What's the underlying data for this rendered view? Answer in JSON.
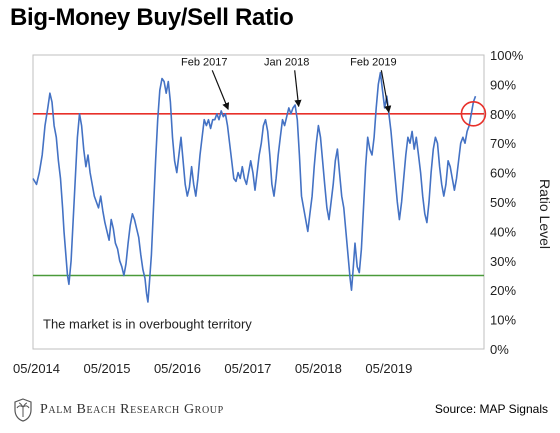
{
  "title": "Big-Money Buy/Sell Ratio",
  "brand": "Palm Beach Research Group",
  "source": "Source: MAP Signals",
  "chart_data": {
    "type": "line",
    "xlabel": "",
    "ylabel": "Ratio Level",
    "ylim": [
      0,
      100
    ],
    "yticks": [
      "0%",
      "10%",
      "20%",
      "30%",
      "40%",
      "50%",
      "60%",
      "70%",
      "80%",
      "90%",
      "100%"
    ],
    "xticks": [
      {
        "label": "05/2014",
        "t": 0
      },
      {
        "label": "05/2015",
        "t": 1
      },
      {
        "label": "05/2016",
        "t": 2
      },
      {
        "label": "05/2017",
        "t": 3
      },
      {
        "label": "05/2018",
        "t": 4
      },
      {
        "label": "05/2019",
        "t": 5
      }
    ],
    "xlim": [
      -0.05,
      6.35
    ],
    "reference_lines": [
      {
        "value": 80,
        "color": "#e8302a"
      },
      {
        "value": 25,
        "color": "#4a9a3a"
      }
    ],
    "annotations": [
      {
        "text": "Feb 2017",
        "t": 2.38,
        "y": 96.5,
        "arrow_to_t": 2.72,
        "arrow_to_y": 81.5
      },
      {
        "text": "Jan 2018",
        "t": 3.55,
        "y": 96.5,
        "arrow_to_t": 3.72,
        "arrow_to_y": 82.5
      },
      {
        "text": "Feb 2019",
        "t": 4.78,
        "y": 96.5,
        "arrow_to_t": 5.0,
        "arrow_to_y": 80.5
      }
    ],
    "note": "The market is in overbought territory",
    "highlight": {
      "t": 6.2,
      "y": 80
    },
    "series": [
      {
        "color": "#4472c4",
        "points": [
          [
            -0.05,
            58
          ],
          [
            0.0,
            56
          ],
          [
            0.04,
            60
          ],
          [
            0.08,
            66
          ],
          [
            0.12,
            76
          ],
          [
            0.16,
            82
          ],
          [
            0.19,
            87
          ],
          [
            0.22,
            84
          ],
          [
            0.25,
            76
          ],
          [
            0.28,
            72
          ],
          [
            0.31,
            64
          ],
          [
            0.34,
            58
          ],
          [
            0.37,
            48
          ],
          [
            0.39,
            40
          ],
          [
            0.42,
            31
          ],
          [
            0.44,
            25
          ],
          [
            0.46,
            22
          ],
          [
            0.49,
            30
          ],
          [
            0.52,
            44
          ],
          [
            0.55,
            58
          ],
          [
            0.58,
            72
          ],
          [
            0.61,
            80
          ],
          [
            0.64,
            76
          ],
          [
            0.67,
            68
          ],
          [
            0.7,
            62
          ],
          [
            0.73,
            66
          ],
          [
            0.76,
            60
          ],
          [
            0.79,
            56
          ],
          [
            0.82,
            52
          ],
          [
            0.85,
            50
          ],
          [
            0.88,
            48
          ],
          [
            0.91,
            52
          ],
          [
            0.94,
            47
          ],
          [
            0.97,
            43
          ],
          [
            1.0,
            40
          ],
          [
            1.03,
            37
          ],
          [
            1.06,
            44
          ],
          [
            1.09,
            41
          ],
          [
            1.12,
            36
          ],
          [
            1.15,
            34
          ],
          [
            1.18,
            30
          ],
          [
            1.21,
            28
          ],
          [
            1.24,
            25
          ],
          [
            1.27,
            29
          ],
          [
            1.3,
            36
          ],
          [
            1.33,
            42
          ],
          [
            1.36,
            46
          ],
          [
            1.39,
            44
          ],
          [
            1.42,
            41
          ],
          [
            1.45,
            38
          ],
          [
            1.48,
            32
          ],
          [
            1.51,
            27
          ],
          [
            1.54,
            24
          ],
          [
            1.56,
            19
          ],
          [
            1.58,
            16
          ],
          [
            1.6,
            22
          ],
          [
            1.63,
            32
          ],
          [
            1.66,
            48
          ],
          [
            1.69,
            64
          ],
          [
            1.72,
            78
          ],
          [
            1.75,
            88
          ],
          [
            1.78,
            92
          ],
          [
            1.81,
            91
          ],
          [
            1.84,
            87
          ],
          [
            1.87,
            91
          ],
          [
            1.9,
            84
          ],
          [
            1.93,
            72
          ],
          [
            1.96,
            64
          ],
          [
            1.99,
            60
          ],
          [
            2.02,
            66
          ],
          [
            2.05,
            72
          ],
          [
            2.08,
            64
          ],
          [
            2.11,
            56
          ],
          [
            2.14,
            52
          ],
          [
            2.17,
            55
          ],
          [
            2.2,
            62
          ],
          [
            2.23,
            56
          ],
          [
            2.26,
            52
          ],
          [
            2.29,
            58
          ],
          [
            2.32,
            66
          ],
          [
            2.35,
            72
          ],
          [
            2.38,
            78
          ],
          [
            2.41,
            76
          ],
          [
            2.44,
            78
          ],
          [
            2.47,
            75
          ],
          [
            2.5,
            78
          ],
          [
            2.53,
            78
          ],
          [
            2.56,
            80
          ],
          [
            2.59,
            78
          ],
          [
            2.62,
            81
          ],
          [
            2.65,
            79
          ],
          [
            2.68,
            80
          ],
          [
            2.71,
            76
          ],
          [
            2.74,
            70
          ],
          [
            2.77,
            64
          ],
          [
            2.8,
            58
          ],
          [
            2.83,
            57
          ],
          [
            2.86,
            60
          ],
          [
            2.89,
            58
          ],
          [
            2.92,
            62
          ],
          [
            2.95,
            58
          ],
          [
            2.98,
            56
          ],
          [
            3.01,
            60
          ],
          [
            3.04,
            64
          ],
          [
            3.07,
            60
          ],
          [
            3.1,
            54
          ],
          [
            3.13,
            60
          ],
          [
            3.16,
            66
          ],
          [
            3.19,
            70
          ],
          [
            3.22,
            76
          ],
          [
            3.25,
            78
          ],
          [
            3.28,
            74
          ],
          [
            3.31,
            66
          ],
          [
            3.34,
            56
          ],
          [
            3.37,
            52
          ],
          [
            3.4,
            58
          ],
          [
            3.43,
            66
          ],
          [
            3.46,
            72
          ],
          [
            3.49,
            78
          ],
          [
            3.52,
            76
          ],
          [
            3.55,
            79
          ],
          [
            3.58,
            82
          ],
          [
            3.61,
            80
          ],
          [
            3.64,
            82
          ],
          [
            3.67,
            83
          ],
          [
            3.7,
            78
          ],
          [
            3.73,
            66
          ],
          [
            3.76,
            52
          ],
          [
            3.79,
            48
          ],
          [
            3.82,
            44
          ],
          [
            3.85,
            40
          ],
          [
            3.88,
            46
          ],
          [
            3.91,
            52
          ],
          [
            3.94,
            62
          ],
          [
            3.97,
            70
          ],
          [
            4.0,
            76
          ],
          [
            4.03,
            72
          ],
          [
            4.06,
            64
          ],
          [
            4.09,
            56
          ],
          [
            4.12,
            48
          ],
          [
            4.15,
            44
          ],
          [
            4.18,
            50
          ],
          [
            4.21,
            56
          ],
          [
            4.24,
            64
          ],
          [
            4.27,
            68
          ],
          [
            4.3,
            60
          ],
          [
            4.33,
            52
          ],
          [
            4.36,
            48
          ],
          [
            4.39,
            40
          ],
          [
            4.42,
            32
          ],
          [
            4.45,
            24
          ],
          [
            4.47,
            20
          ],
          [
            4.49,
            26
          ],
          [
            4.52,
            36
          ],
          [
            4.55,
            28
          ],
          [
            4.58,
            26
          ],
          [
            4.61,
            34
          ],
          [
            4.64,
            48
          ],
          [
            4.67,
            62
          ],
          [
            4.7,
            72
          ],
          [
            4.73,
            68
          ],
          [
            4.76,
            66
          ],
          [
            4.79,
            72
          ],
          [
            4.82,
            82
          ],
          [
            4.85,
            90
          ],
          [
            4.88,
            94
          ],
          [
            4.91,
            88
          ],
          [
            4.94,
            82
          ],
          [
            4.97,
            86
          ],
          [
            5.0,
            80
          ],
          [
            5.03,
            74
          ],
          [
            5.06,
            66
          ],
          [
            5.09,
            58
          ],
          [
            5.12,
            50
          ],
          [
            5.15,
            44
          ],
          [
            5.18,
            50
          ],
          [
            5.21,
            58
          ],
          [
            5.24,
            66
          ],
          [
            5.27,
            72
          ],
          [
            5.3,
            70
          ],
          [
            5.33,
            74
          ],
          [
            5.36,
            68
          ],
          [
            5.39,
            72
          ],
          [
            5.42,
            66
          ],
          [
            5.45,
            60
          ],
          [
            5.48,
            52
          ],
          [
            5.51,
            46
          ],
          [
            5.54,
            43
          ],
          [
            5.57,
            50
          ],
          [
            5.6,
            60
          ],
          [
            5.63,
            68
          ],
          [
            5.66,
            72
          ],
          [
            5.69,
            70
          ],
          [
            5.72,
            62
          ],
          [
            5.75,
            56
          ],
          [
            5.78,
            52
          ],
          [
            5.81,
            56
          ],
          [
            5.84,
            64
          ],
          [
            5.87,
            62
          ],
          [
            5.9,
            58
          ],
          [
            5.93,
            54
          ],
          [
            5.96,
            58
          ],
          [
            5.99,
            64
          ],
          [
            6.02,
            70
          ],
          [
            6.05,
            72
          ],
          [
            6.08,
            70
          ],
          [
            6.11,
            74
          ],
          [
            6.14,
            76
          ],
          [
            6.17,
            80
          ],
          [
            6.2,
            84
          ],
          [
            6.23,
            86
          ]
        ]
      }
    ]
  }
}
